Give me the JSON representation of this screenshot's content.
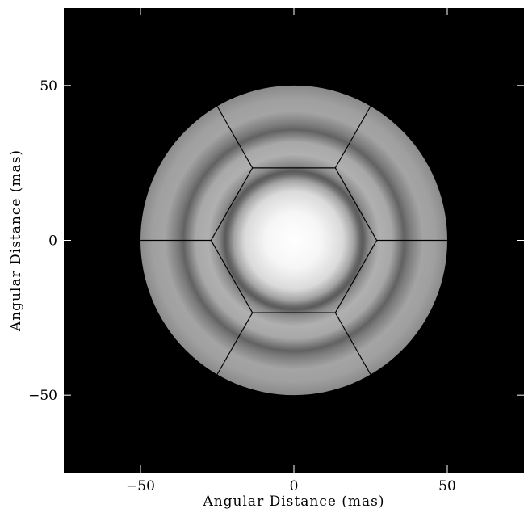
{
  "chart_data": {
    "type": "heatmap",
    "title": "",
    "xlabel": "Angular Distance (mas)",
    "ylabel": "Angular Distance (mas)",
    "xlim": [
      -75,
      75
    ],
    "ylim": [
      -75,
      75
    ],
    "xticks": [
      -50,
      0,
      50
    ],
    "yticks": [
      -50,
      0,
      50
    ],
    "xtick_labels": [
      "−50",
      "0",
      "50"
    ],
    "ytick_labels": [
      "−50",
      "0",
      "50"
    ],
    "colormap": "grayscale",
    "grid": false,
    "legend": "none",
    "background_color": "#000000",
    "disk_outer_radius_mas": 50,
    "inner_disk_radius_mas": 22,
    "dark_ring_radii_mas": [
      22,
      36
    ],
    "hexagon": {
      "inner_vertex_radius_mas": 27,
      "spoke_outer_radius_mas": 50
    }
  }
}
